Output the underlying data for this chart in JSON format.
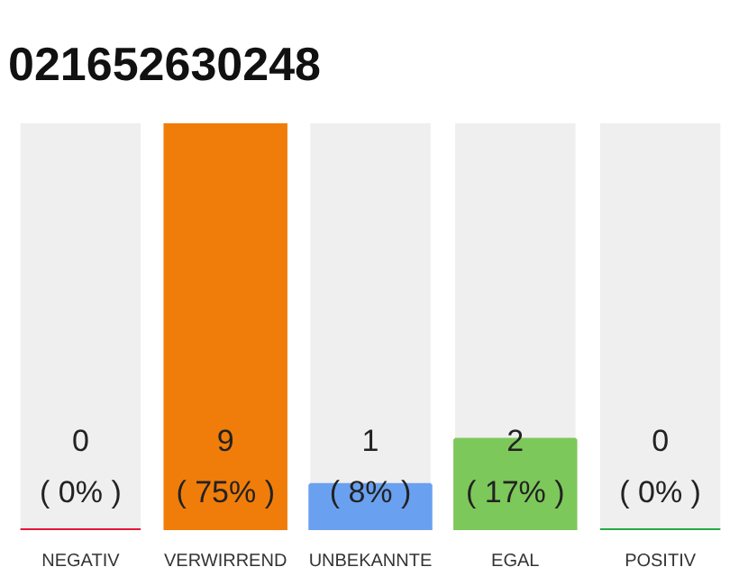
{
  "chart_data": {
    "type": "bar",
    "title": "021652630248",
    "categories": [
      "NEGATIV",
      "VERWIRREND",
      "UNBEKANNTE",
      "EGAL",
      "POSITIV"
    ],
    "values": [
      0,
      9,
      1,
      2,
      0
    ],
    "colors": [
      "#e8173a",
      "#f07d0a",
      "#6aa0f0",
      "#7dc85a",
      "#27a844"
    ],
    "ylim": [
      0,
      9
    ],
    "value_labels": [
      "0\n( 0% )",
      "9\n( 75% )",
      "1\n( 8% )",
      "2\n( 17% )",
      "0\n( 0% )"
    ],
    "grid": false
  }
}
